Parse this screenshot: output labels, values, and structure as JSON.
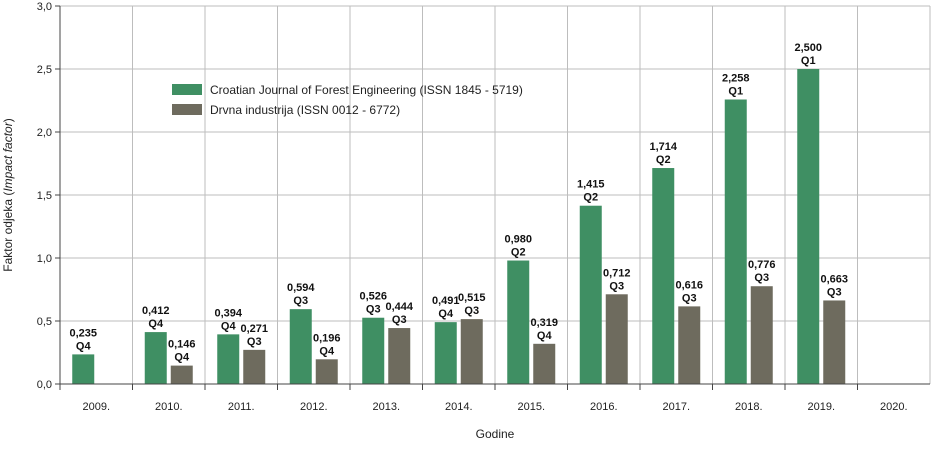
{
  "chart_data": {
    "type": "bar",
    "title": "",
    "xlabel": "Godine",
    "ylabel_prefix": "Faktor odjeka (",
    "ylabel_italic": "Impact factor",
    "ylabel_suffix": ")",
    "ylim": [
      0,
      3
    ],
    "yticks": [
      0,
      0.5,
      1,
      1.5,
      2,
      2.5,
      3
    ],
    "ytick_labels": [
      "0,0",
      "0,5",
      "1,0",
      "1,5",
      "2,0",
      "2,5",
      "3,0"
    ],
    "grid": true,
    "legend_position": "top-left",
    "categories": [
      "2009.",
      "2010.",
      "2011.",
      "2012.",
      "2013.",
      "2014.",
      "2015.",
      "2016.",
      "2017.",
      "2018.",
      "2019.",
      "2020."
    ],
    "series": [
      {
        "name": "Croatian Journal of Forest Engineering (ISSN 1845 - 5719)",
        "color": "#3f8f63",
        "values": [
          0.235,
          0.412,
          0.394,
          0.594,
          0.526,
          0.491,
          0.98,
          1.415,
          1.714,
          2.258,
          2.5,
          null
        ],
        "labels": [
          "0,235",
          "0,412",
          "0,394",
          "0,594",
          "0,526",
          "0,491",
          "0,980",
          "1,415",
          "1,714",
          "2,258",
          "2,500",
          null
        ],
        "quartiles": [
          "Q4",
          "Q4",
          "Q4",
          "Q3",
          "Q3",
          "Q4",
          "Q2",
          "Q2",
          "Q2",
          "Q1",
          "Q1",
          null
        ]
      },
      {
        "name": "Drvna industrija (ISSN 0012 - 6772)",
        "color": "#6e6b5e",
        "values": [
          null,
          0.146,
          0.271,
          0.196,
          0.444,
          0.515,
          0.319,
          0.712,
          0.616,
          0.776,
          0.663,
          null
        ],
        "labels": [
          null,
          "0,146",
          "0,271",
          "0,196",
          "0,444",
          "0,515",
          "0,319",
          "0,712",
          "0,616",
          "0,776",
          "0,663",
          null
        ],
        "quartiles": [
          null,
          "Q4",
          "Q3",
          "Q4",
          "Q3",
          "Q3",
          "Q4",
          "Q3",
          "Q3",
          "Q3",
          "Q3",
          null
        ]
      }
    ]
  }
}
